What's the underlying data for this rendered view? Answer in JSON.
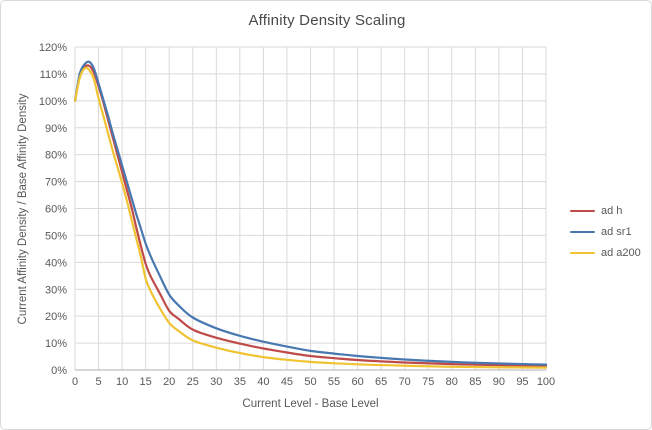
{
  "chart_data": {
    "type": "line",
    "title": "Affinity Density Scaling",
    "xlabel": "Current Level - Base Level",
    "ylabel": "Current Affinity Density / Base Affinity Density",
    "xlim": [
      0,
      100
    ],
    "ylim_percent": [
      0,
      120
    ],
    "grid": true,
    "legend_position": "right",
    "x_ticks": [
      0,
      5,
      10,
      15,
      20,
      25,
      30,
      35,
      40,
      45,
      50,
      55,
      60,
      65,
      70,
      75,
      80,
      85,
      90,
      95,
      100
    ],
    "y_tick_labels": [
      "0%",
      "10%",
      "20%",
      "30%",
      "40%",
      "50%",
      "60%",
      "70%",
      "80%",
      "90%",
      "100%",
      "110%",
      "120%"
    ],
    "y_tick_values": [
      0,
      10,
      20,
      30,
      40,
      50,
      60,
      70,
      80,
      90,
      100,
      110,
      120
    ],
    "x": [
      0,
      1,
      2,
      3,
      4,
      5,
      6,
      7,
      8,
      9,
      10,
      11,
      12,
      13,
      14,
      15,
      16,
      18,
      20,
      22,
      25,
      30,
      35,
      40,
      45,
      50,
      55,
      60,
      70,
      80,
      90,
      100
    ],
    "series": [
      {
        "name": "ad h",
        "color": "#BE4B48",
        "values_percent": [
          100,
          109,
          112.5,
          113,
          110.5,
          105.5,
          99.5,
          93,
          86.5,
          80,
          73.5,
          67,
          60.5,
          53,
          46,
          39.5,
          35,
          28.5,
          22,
          19,
          15,
          12,
          9.8,
          8,
          6.5,
          5.2,
          4.4,
          3.7,
          2.8,
          2.2,
          1.8,
          1.6
        ]
      },
      {
        "name": "ad sr1",
        "color": "#4878B0",
        "values_percent": [
          100,
          110,
          113.5,
          114.5,
          112,
          106.5,
          100.5,
          94.5,
          88,
          82,
          76,
          70,
          64,
          58,
          52.5,
          47,
          42.5,
          35,
          28,
          24,
          19.5,
          15.5,
          12.7,
          10.5,
          8.7,
          7.1,
          6.1,
          5.2,
          3.9,
          3.0,
          2.4,
          2.0
        ]
      },
      {
        "name": "ad a200",
        "color": "#F0C332",
        "values_percent": [
          100,
          108.5,
          112,
          111.5,
          108,
          101,
          94.5,
          88,
          81.5,
          75.5,
          69.5,
          63,
          56,
          49,
          42,
          34,
          29.5,
          23,
          17.5,
          14.5,
          11,
          8.3,
          6.3,
          4.8,
          3.8,
          3.0,
          2.5,
          2.1,
          1.6,
          1.2,
          1.0,
          0.9
        ]
      }
    ],
    "colors": {
      "gridline": "#D9D9D9",
      "axis_line": "#BFBFBF",
      "tick_text": "#595959",
      "title_text": "#4a4a4a",
      "background": "#FFFFFF",
      "frame_border": "#D9D9D9"
    }
  }
}
